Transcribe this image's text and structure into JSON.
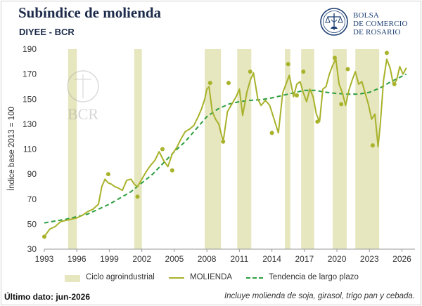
{
  "header": {
    "title": "Subíndice de molienda",
    "subtitle": "DIYEE - BCR",
    "logo_text": [
      "BOLSA",
      "DE COMERCIO",
      "DE ROSARIO"
    ],
    "watermark_text": "BCR"
  },
  "footer": {
    "last_data": "Último dato: jun-2026",
    "note": "Incluye molienda de soja, girasol, trigo pan y cebada."
  },
  "colors": {
    "series": "#a8b22a",
    "trend": "#2e9e3e",
    "band": "#e6e6bf",
    "axis": "#999999",
    "title": "#1c2b4a",
    "logo": "#1c3f73"
  },
  "chart_data": {
    "type": "line",
    "ylabel": "Índice base 2013 = 100",
    "xlabel": "",
    "ylim": [
      30,
      190
    ],
    "xlim": [
      1993,
      2027.2
    ],
    "yticks": [
      30,
      50,
      70,
      90,
      110,
      130,
      150,
      170,
      190
    ],
    "xticks": [
      1993,
      1996,
      1999,
      2002,
      2005,
      2008,
      2011,
      2014,
      2017,
      2020,
      2023,
      2026
    ],
    "grid": false,
    "legend_position": "bottom",
    "legend": [
      "Ciclo agroindustrial",
      "MOLIENDA",
      "Tendencia de largo plazo"
    ],
    "cycle_bands": [
      [
        1995.2,
        1996.0
      ],
      [
        2001.3,
        2002.0
      ],
      [
        2007.8,
        2009.3
      ],
      [
        2010.8,
        2012.1
      ],
      [
        2015.2,
        2015.7
      ],
      [
        2016.7,
        2017.9
      ],
      [
        2019.6,
        2020.9
      ],
      [
        2021.7,
        2023.9
      ]
    ],
    "series": [
      {
        "name": "MOLIENDA",
        "style": "solid",
        "x": [
          1993.0,
          1993.5,
          1994.0,
          1994.5,
          1995.0,
          1995.5,
          1996.0,
          1996.5,
          1997.0,
          1997.5,
          1998.0,
          1998.3,
          1998.6,
          1998.9,
          1999.2,
          1999.5,
          1999.8,
          2000.2,
          2000.6,
          2001.0,
          2001.3,
          2001.6,
          2002.0,
          2002.4,
          2002.8,
          2003.2,
          2003.6,
          2004.0,
          2004.4,
          2004.8,
          2005.2,
          2005.6,
          2006.0,
          2006.4,
          2006.8,
          2007.2,
          2007.5,
          2007.8,
          2008.0,
          2008.2,
          2008.5,
          2008.8,
          2009.1,
          2009.5,
          2009.9,
          2010.3,
          2010.7,
          2011.0,
          2011.3,
          2011.7,
          2012.0,
          2012.3,
          2012.7,
          2013.0,
          2013.4,
          2013.8,
          2014.2,
          2014.6,
          2015.0,
          2015.3,
          2015.6,
          2016.0,
          2016.3,
          2016.6,
          2016.9,
          2017.2,
          2017.5,
          2017.8,
          2018.1,
          2018.4,
          2018.7,
          2019.0,
          2019.3,
          2019.6,
          2019.9,
          2020.2,
          2020.5,
          2020.8,
          2021.1,
          2021.4,
          2021.7,
          2022.0,
          2022.3,
          2022.6,
          2022.9,
          2023.2,
          2023.5,
          2023.8,
          2024.0,
          2024.3,
          2024.6,
          2024.9,
          2025.2,
          2025.5,
          2025.8,
          2026.1,
          2026.4
        ],
        "y": [
          40,
          46,
          48,
          52,
          53,
          54,
          55,
          57,
          60,
          62,
          66,
          80,
          86,
          83,
          82,
          80,
          79,
          77,
          85,
          86,
          82,
          80,
          86,
          92,
          97,
          101,
          108,
          101,
          96,
          106,
          111,
          118,
          124,
          126,
          129,
          136,
          142,
          150,
          158,
          160,
          140,
          134,
          130,
          116,
          140,
          146,
          152,
          158,
          137,
          156,
          165,
          171,
          150,
          145,
          149,
          145,
          134,
          123,
          155,
          162,
          169,
          152,
          162,
          164,
          155,
          148,
          158,
          152,
          138,
          132,
          158,
          160,
          170,
          177,
          182,
          162,
          155,
          145,
          157,
          165,
          172,
          162,
          164,
          155,
          146,
          134,
          138,
          112,
          130,
          165,
          182,
          175,
          162,
          165,
          176,
          170,
          175
        ]
      },
      {
        "name": "Tendencia de largo plazo",
        "style": "dashed",
        "x": [
          1993.0,
          1995,
          1997,
          1999,
          2001,
          2003,
          2005,
          2006,
          2007,
          2008,
          2009,
          2010,
          2011,
          2012,
          2013,
          2014,
          2015,
          2016,
          2017,
          2018,
          2019,
          2020,
          2021,
          2022,
          2023,
          2024,
          2025,
          2026.4
        ],
        "y": [
          51,
          54,
          58,
          66,
          76,
          90,
          108,
          116,
          126,
          136,
          142,
          146,
          148,
          149,
          149.5,
          151,
          153,
          155,
          157,
          157,
          155.5,
          154.5,
          154,
          154,
          155.5,
          159,
          164,
          170
        ]
      }
    ],
    "markers": {
      "name": "MOLIENDA",
      "x": [
        1993.0,
        1998.9,
        2001.6,
        2003.9,
        2004.8,
        2008.3,
        2009.5,
        2010.0,
        2012.0,
        2014.0,
        2015.5,
        2016.3,
        2016.9,
        2018.2,
        2019.8,
        2020.4,
        2021.0,
        2023.3,
        2024.6,
        2025.3
      ],
      "y": [
        40,
        90,
        72,
        110,
        93,
        163,
        116,
        163,
        172,
        123,
        178,
        153,
        172,
        132,
        183,
        146,
        174,
        113,
        187,
        162
      ]
    }
  }
}
